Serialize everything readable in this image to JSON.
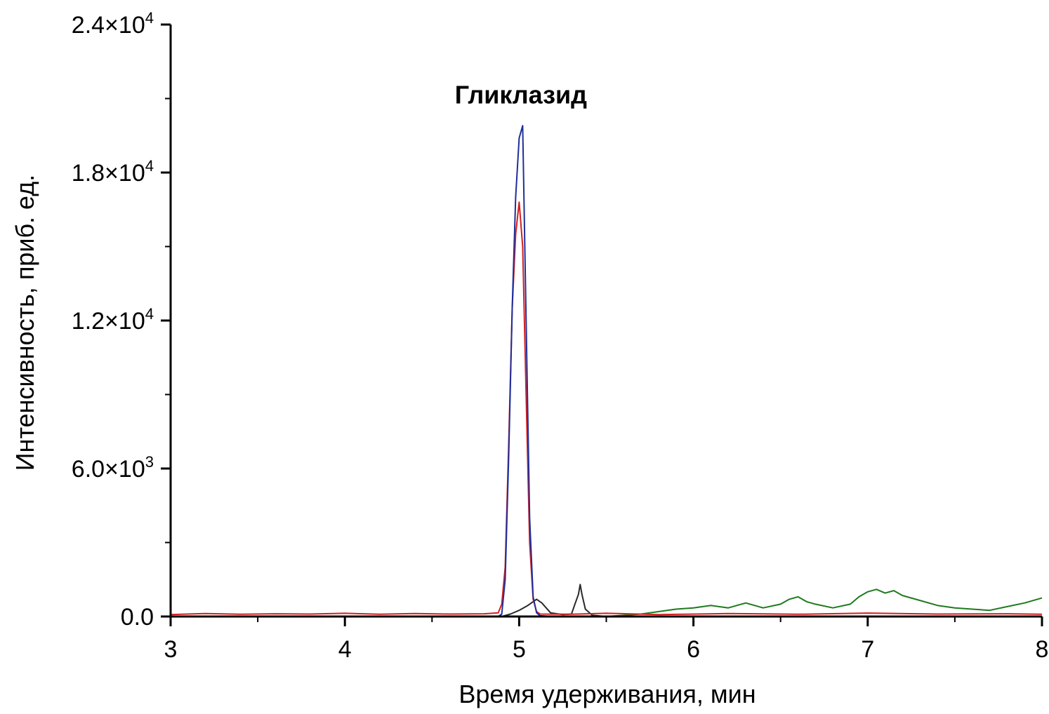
{
  "chart_data": {
    "type": "line",
    "title": "",
    "xlabel": "Время удерживания, мин",
    "ylabel": "Интенсивность, приб. ед.",
    "xlim": [
      3,
      8
    ],
    "ylim": [
      0,
      24000
    ],
    "grid": false,
    "x_ticks": [
      {
        "value": 3,
        "label": "3"
      },
      {
        "value": 4,
        "label": "4"
      },
      {
        "value": 5,
        "label": "5"
      },
      {
        "value": 6,
        "label": "6"
      },
      {
        "value": 7,
        "label": "7"
      },
      {
        "value": 8,
        "label": "8"
      }
    ],
    "y_ticks": [
      {
        "value": 0,
        "mantissa": "0.0",
        "exp": ""
      },
      {
        "value": 6000,
        "mantissa": "6.0×10",
        "exp": "3"
      },
      {
        "value": 12000,
        "mantissa": "1.2×10",
        "exp": "4"
      },
      {
        "value": 18000,
        "mantissa": "1.8×10",
        "exp": "4"
      },
      {
        "value": 24000,
        "mantissa": "2.4×10",
        "exp": "4"
      }
    ],
    "annotations": [
      {
        "text": "Гликлазид",
        "x": 5.01,
        "y": 20800
      }
    ],
    "series": [
      {
        "color": "#1f2f9a",
        "x": [
          3,
          4.88,
          4.9,
          4.92,
          4.94,
          4.96,
          4.98,
          5.0,
          5.02,
          5.04,
          5.06,
          5.08,
          5.1,
          5.12,
          5.2,
          8
        ],
        "y": [
          0,
          0,
          100,
          1500,
          6500,
          12500,
          17000,
          19400,
          19900,
          12000,
          4000,
          800,
          150,
          30,
          0,
          0
        ]
      },
      {
        "color": "#d42020",
        "x": [
          3,
          3.2,
          3.4,
          3.6,
          3.8,
          4.0,
          4.2,
          4.4,
          4.6,
          4.8,
          4.88,
          4.9,
          4.92,
          4.94,
          4.96,
          4.98,
          5.0,
          5.02,
          5.04,
          5.06,
          5.08,
          5.1,
          5.12,
          5.3,
          5.5,
          5.8,
          6.2,
          6.6,
          7.0,
          7.4,
          7.8,
          8.0
        ],
        "y": [
          80,
          120,
          90,
          110,
          100,
          130,
          90,
          120,
          100,
          110,
          150,
          500,
          2000,
          7000,
          12500,
          15500,
          16800,
          15000,
          9000,
          3000,
          700,
          200,
          100,
          90,
          130,
          80,
          120,
          90,
          140,
          100,
          110,
          90
        ]
      },
      {
        "color": "#2a2a2a",
        "x": [
          3,
          4.9,
          4.95,
          5.0,
          5.05,
          5.1,
          5.13,
          5.18,
          5.25,
          5.3,
          5.32,
          5.34,
          5.35,
          5.36,
          5.38,
          5.42,
          5.5,
          8
        ],
        "y": [
          0,
          0,
          100,
          250,
          450,
          700,
          550,
          150,
          80,
          100,
          500,
          900,
          1300,
          900,
          300,
          50,
          0,
          0
        ]
      },
      {
        "color": "#1e7a1e",
        "x": [
          3,
          5.5,
          5.7,
          5.9,
          6.0,
          6.1,
          6.2,
          6.3,
          6.4,
          6.5,
          6.55,
          6.6,
          6.65,
          6.7,
          6.8,
          6.9,
          6.95,
          7.0,
          7.05,
          7.1,
          7.15,
          7.2,
          7.3,
          7.4,
          7.5,
          7.6,
          7.7,
          7.8,
          7.9,
          8.0
        ],
        "y": [
          0,
          0,
          100,
          300,
          350,
          450,
          350,
          550,
          350,
          500,
          700,
          800,
          600,
          500,
          350,
          500,
          800,
          1000,
          1100,
          950,
          1050,
          850,
          650,
          450,
          350,
          300,
          250,
          400,
          550,
          750
        ]
      }
    ]
  }
}
